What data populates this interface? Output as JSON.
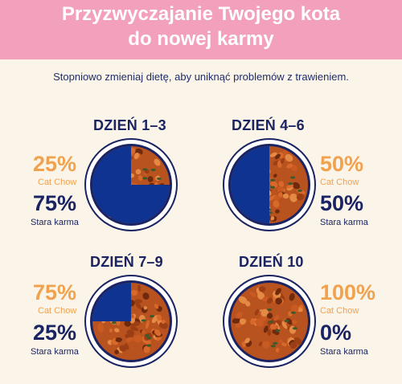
{
  "header": {
    "title": "Przyzwyczajanie Twojego kota do nowej karmy"
  },
  "subtitle": "Stopniowo zmieniaj dietę, aby uniknąć problemów z trawieniem.",
  "colors": {
    "header_bg": "#f3a0bd",
    "page_bg": "#fbf4e8",
    "navy": "#1a2462",
    "orange": "#f0a24f",
    "plate_blue": "#0f3390"
  },
  "stages": [
    {
      "day": "DZIEŃ 1–3",
      "new_pct": "25%",
      "new_label": "Cat Chow",
      "old_pct": "75%",
      "old_label": "Stara karma",
      "new_fraction": 0.25
    },
    {
      "day": "DZIEŃ 4–6",
      "new_pct": "50%",
      "new_label": "Cat Chow",
      "old_pct": "50%",
      "old_label": "Stara karma",
      "new_fraction": 0.5
    },
    {
      "day": "DZIEŃ 7–9",
      "new_pct": "75%",
      "new_label": "Cat Chow",
      "old_pct": "25%",
      "old_label": "Stara karma",
      "new_fraction": 0.75
    },
    {
      "day": "DZIEŃ 10",
      "new_pct": "100%",
      "new_label": "Cat Chow",
      "old_pct": "0%",
      "old_label": "Stara karma",
      "new_fraction": 1.0
    }
  ]
}
